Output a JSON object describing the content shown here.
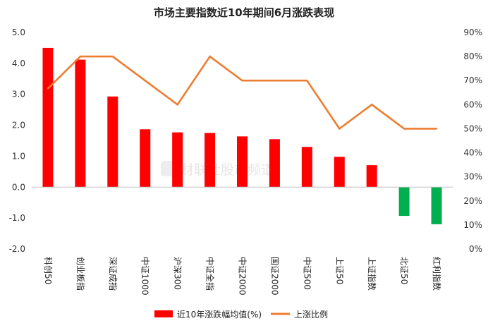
{
  "chart_data": {
    "type": "bar+line",
    "title": "市场主要指数近10年期间6月涨跌表现",
    "categories": [
      "科创50",
      "创业板指",
      "深证成指",
      "中证1000",
      "沪深300",
      "中证全指",
      "中证2000",
      "国证2000",
      "中证500",
      "上证50",
      "上证指数",
      "北证50",
      "红利指数"
    ],
    "series": [
      {
        "name": "近10年涨跌幅均值(%)",
        "type": "bar",
        "axis": "left",
        "values": [
          4.5,
          4.12,
          2.93,
          1.87,
          1.77,
          1.75,
          1.64,
          1.55,
          1.3,
          0.98,
          0.71,
          -0.93,
          -1.2
        ],
        "positive_color": "#ff0000",
        "negative_color": "#00b050"
      },
      {
        "name": "上涨比例",
        "type": "line",
        "axis": "right",
        "values": [
          66.7,
          80,
          80,
          70,
          60,
          80,
          70,
          70,
          70,
          50,
          60,
          50,
          50
        ],
        "color": "#ed7d31"
      }
    ],
    "left_axis": {
      "min": -2.0,
      "max": 5.0,
      "ticks": [
        "5.0",
        "4.0",
        "3.0",
        "2.0",
        "1.0",
        "0.0",
        "-1.0",
        "-2.0"
      ],
      "tick_values": [
        5,
        4,
        3,
        2,
        1,
        0,
        -1,
        -2
      ]
    },
    "right_axis": {
      "min": 0,
      "max": 90,
      "ticks": [
        "90%",
        "80%",
        "70%",
        "60%",
        "50%",
        "40%",
        "30%",
        "20%",
        "10%",
        "0%"
      ],
      "tick_values": [
        90,
        80,
        70,
        60,
        50,
        40,
        30,
        20,
        10,
        0
      ]
    },
    "grid": false,
    "legend_position": "bottom",
    "watermark": "财联社股市频道"
  }
}
